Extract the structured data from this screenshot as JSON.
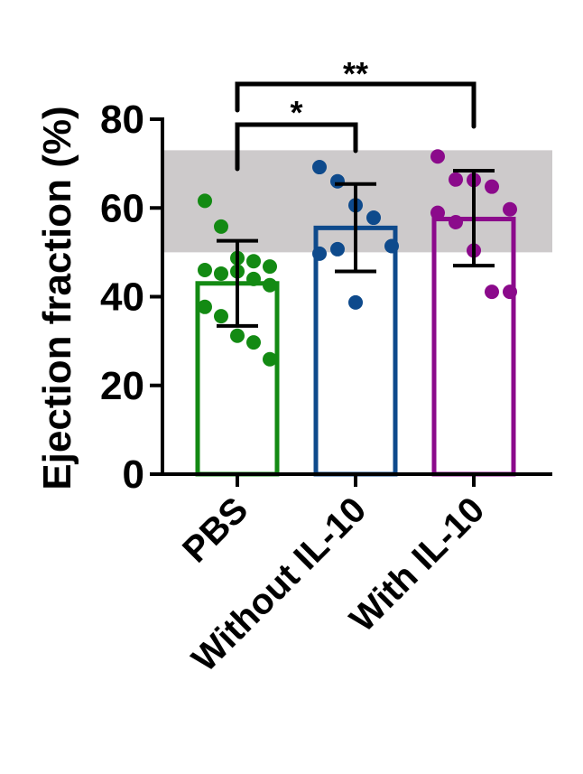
{
  "chart_data": {
    "type": "bar",
    "title": "",
    "xlabel": "",
    "ylabel": "Ejection fraction (%)",
    "ylim": [
      0,
      80
    ],
    "yticks": [
      0,
      20,
      40,
      60,
      80
    ],
    "grid": false,
    "reference_band": {
      "from": 50,
      "to": 73,
      "color": "#cdcacb"
    },
    "categories": [
      "PBS",
      "Without IL-10",
      "With IL-10"
    ],
    "colors": [
      "#138a13",
      "#0e4a8c",
      "#8b0a8b"
    ],
    "values": [
      43,
      55.5,
      57.5
    ],
    "error_bars": [
      [
        33.4,
        52.6
      ],
      [
        45.7,
        65.4
      ],
      [
        47.0,
        68.4
      ]
    ],
    "points": [
      [
        61.6,
        55.8,
        48.7,
        48.0,
        46.8,
        46.0,
        45.2,
        45.7,
        44.0,
        42.6,
        37.7,
        35.6,
        31.2,
        29.7,
        25.9
      ],
      [
        69.2,
        66.0,
        60.6,
        57.8,
        51.4,
        49.7,
        50.7,
        38.7
      ],
      [
        71.6,
        66.4,
        66.3,
        64.8,
        59.7,
        58.9,
        56.8,
        50.4,
        41.1,
        41.1
      ]
    ],
    "significance": [
      {
        "from": "PBS",
        "to": "Without IL-10",
        "label": "*"
      },
      {
        "from": "PBS",
        "to": "With IL-10",
        "label": "**"
      }
    ]
  }
}
